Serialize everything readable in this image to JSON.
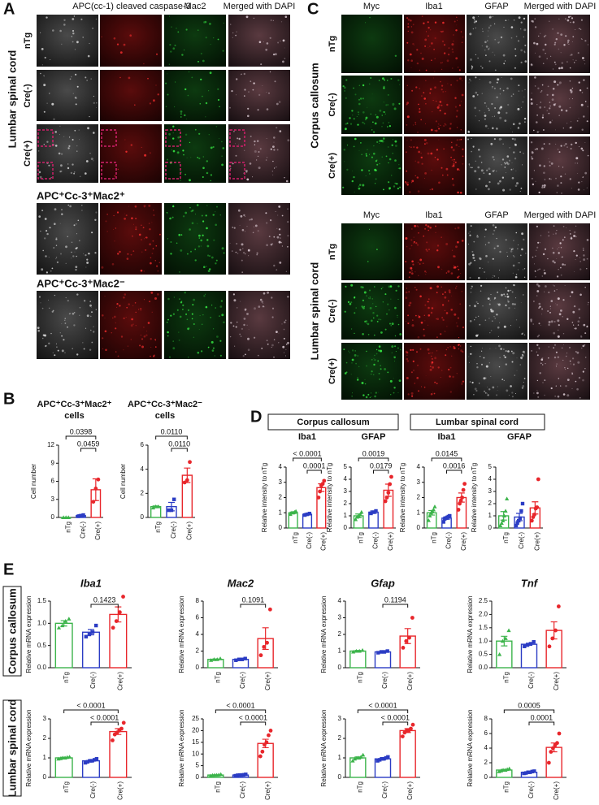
{
  "panel_letters": [
    "A",
    "B",
    "C",
    "D",
    "E"
  ],
  "panel_a": {
    "columns": [
      "APC(cc-1) cleaved caspase-3",
      "Mac2",
      "Merged with DAPI"
    ],
    "side_label": "Lumbar spinal cord",
    "rows": [
      "nTg",
      "Cre(-)",
      "Cre(+)"
    ],
    "insets": [
      "APC⁺Cc-3⁺Mac2⁺",
      "APC⁺Cc-3⁺Mac2⁻"
    ]
  },
  "panel_c": {
    "columns": [
      "Myc",
      "Iba1",
      "GFAP",
      "Merged with DAPI"
    ],
    "blocks": [
      {
        "label": "Corpus callosum",
        "rows": [
          "nTg",
          "Cre(-)",
          "Cre(+)"
        ]
      },
      {
        "label": "Lumbar spinal cord",
        "rows": [
          "nTg",
          "Cre(-)",
          "Cre(+)"
        ]
      }
    ]
  },
  "panel_d": {
    "groups": [
      "Corpus callosum",
      "Lumbar spinal cord"
    ]
  },
  "panel_e": {
    "rows": [
      "Corpus callosum",
      "Lumbar spinal cord"
    ]
  },
  "chart_style": {
    "colors": [
      "#3cb44b",
      "#2b3cc4",
      "#e8262b"
    ],
    "markers": [
      "triangle",
      "square",
      "circle"
    ]
  },
  "chart_data": [
    {
      "type": "bar",
      "title": [
        "APC⁺Cc-3⁺Mac2⁺",
        "cells"
      ],
      "ylabel": "Cell number",
      "categories": [
        "nTg",
        "Cre(-)",
        "Cre(+)"
      ],
      "values": [
        0,
        0.3,
        4.6
      ],
      "errors": [
        0,
        0.15,
        1.8
      ],
      "points": [
        [
          0,
          0,
          0
        ],
        [
          0.2,
          0.3,
          0.4
        ],
        [
          2.6,
          4.8,
          6.3
        ]
      ],
      "ylim": [
        0,
        12
      ],
      "yticks": [
        0,
        3,
        6,
        9,
        12
      ],
      "brackets": [
        {
          "pair": [
            "nTg",
            "Cre(+)"
          ],
          "label": "0.0398"
        },
        {
          "pair": [
            "Cre(-)",
            "Cre(+)"
          ],
          "label": "0.0459"
        }
      ]
    },
    {
      "type": "bar",
      "title": [
        "APC⁺Cc-3⁺Mac2⁻",
        "cells"
      ],
      "ylabel": "Cell number",
      "categories": [
        "nTg",
        "Cre(-)",
        "Cre(+)"
      ],
      "values": [
        0.9,
        0.9,
        3.5
      ],
      "errors": [
        0.05,
        0.35,
        0.6
      ],
      "points": [
        [
          0.8,
          0.9,
          0.9
        ],
        [
          0.6,
          0.6,
          1.5
        ],
        [
          2.9,
          3.1,
          4.6
        ]
      ],
      "ylim": [
        0,
        6
      ],
      "yticks": [
        0,
        2,
        4,
        6
      ],
      "brackets": [
        {
          "pair": [
            "nTg",
            "Cre(+)"
          ],
          "label": "0.0110"
        },
        {
          "pair": [
            "Cre(-)",
            "Cre(+)"
          ],
          "label": "0.0110"
        }
      ]
    },
    {
      "type": "bar",
      "title": "Iba1",
      "ylabel": "Relative intensity to nTg",
      "categories": [
        "nTg",
        "Cre(-)",
        "Cre(+)"
      ],
      "values": [
        1.0,
        0.9,
        2.65
      ],
      "errors": [
        0.05,
        0.05,
        0.25
      ],
      "points": [
        [
          0.9,
          1.0,
          1.0,
          1.05,
          1.1
        ],
        [
          0.85,
          0.9,
          0.95
        ],
        [
          2.0,
          2.4,
          2.8,
          2.9,
          3.1
        ]
      ],
      "ylim": [
        0,
        4
      ],
      "yticks": [
        0,
        1,
        2,
        3,
        4
      ],
      "brackets": [
        {
          "pair": [
            "nTg",
            "Cre(+)"
          ],
          "label": "< 0.0001"
        },
        {
          "pair": [
            "Cre(-)",
            "Cre(+)"
          ],
          "label": "0.0001"
        }
      ]
    },
    {
      "type": "bar",
      "title": "GFAP",
      "ylabel": "Relative intensity to nTg",
      "categories": [
        "nTg",
        "Cre(-)",
        "Cre(+)"
      ],
      "values": [
        1.0,
        1.3,
        3.1
      ],
      "errors": [
        0.15,
        0.1,
        0.5
      ],
      "points": [
        [
          0.7,
          0.9,
          1.0,
          1.1,
          1.3
        ],
        [
          1.2,
          1.3,
          1.4
        ],
        [
          2.2,
          2.5,
          2.9,
          3.6,
          4.2
        ]
      ],
      "ylim": [
        0,
        5
      ],
      "yticks": [
        0,
        1,
        2,
        3,
        4,
        5
      ],
      "brackets": [
        {
          "pair": [
            "nTg",
            "Cre(+)"
          ],
          "label": "0.0019"
        },
        {
          "pair": [
            "Cre(-)",
            "Cre(+)"
          ],
          "label": "0.0179"
        }
      ]
    },
    {
      "type": "bar",
      "title": "Iba1",
      "ylabel": "Relative intensity to nTg",
      "categories": [
        "nTg",
        "Cre(-)",
        "Cre(+)"
      ],
      "values": [
        1.0,
        0.65,
        2.0
      ],
      "errors": [
        0.15,
        0.08,
        0.3
      ],
      "points": [
        [
          0.5,
          0.8,
          1.0,
          1.1,
          1.2,
          1.4
        ],
        [
          0.4,
          0.6,
          0.65,
          0.7,
          0.75,
          0.8
        ],
        [
          1.2,
          1.6,
          1.8,
          2.0,
          2.5,
          2.9
        ]
      ],
      "ylim": [
        0,
        4
      ],
      "yticks": [
        0,
        1,
        2,
        3,
        4
      ],
      "brackets": [
        {
          "pair": [
            "nTg",
            "Cre(+)"
          ],
          "label": "0.0145"
        },
        {
          "pair": [
            "Cre(-)",
            "Cre(+)"
          ],
          "label": "0.0016"
        }
      ]
    },
    {
      "type": "bar",
      "title": "GFAP",
      "ylabel": "Relative intensity to nTg",
      "categories": [
        "nTg",
        "Cre(-)",
        "Cre(+)"
      ],
      "values": [
        1.0,
        0.9,
        1.65
      ],
      "errors": [
        0.35,
        0.3,
        0.5
      ],
      "points": [
        [
          0.2,
          0.4,
          0.6,
          1.0,
          1.4,
          2.4
        ],
        [
          0.2,
          0.4,
          0.6,
          0.8,
          1.4,
          2.0
        ],
        [
          0.6,
          0.9,
          1.1,
          1.6,
          1.7,
          4.0
        ]
      ],
      "ylim": [
        0,
        5
      ],
      "yticks": [
        0,
        1,
        2,
        3,
        4,
        5
      ],
      "brackets": []
    },
    {
      "type": "bar",
      "title": "Iba1",
      "ylabel": "Relative mRNA expression",
      "categories": [
        "nTg",
        "Cre(-)",
        "Cre(+)"
      ],
      "values": [
        1.0,
        0.8,
        1.2
      ],
      "errors": [
        0.06,
        0.06,
        0.17
      ],
      "points": [
        [
          0.9,
          0.95,
          1.05,
          1.1
        ],
        [
          0.7,
          0.75,
          0.8,
          0.95
        ],
        [
          0.9,
          1.05,
          1.25,
          1.6
        ]
      ],
      "ylim": [
        0,
        1.5
      ],
      "yticks": [
        {
          "value": 0,
          "label": "0.0"
        },
        {
          "value": 0.5,
          "label": "0.5"
        },
        {
          "value": 1,
          "label": "1.0"
        },
        {
          "value": 1.5,
          "label": "1.5"
        }
      ],
      "brackets": [
        {
          "pair": [
            "Cre(-)",
            "Cre(+)"
          ],
          "label": "0.1423"
        }
      ]
    },
    {
      "type": "bar",
      "title": "Mac2",
      "ylabel": "Relative mRNA expression",
      "categories": [
        "nTg",
        "Cre(-)",
        "Cre(+)"
      ],
      "values": [
        1.0,
        1.0,
        3.5
      ],
      "errors": [
        0.05,
        0.05,
        1.3
      ],
      "points": [
        [
          0.9,
          1.0,
          1.0,
          1.1
        ],
        [
          0.9,
          1.0,
          1.0,
          1.1
        ],
        [
          1.5,
          2.5,
          3.0,
          7.0
        ]
      ],
      "ylim": [
        0,
        8
      ],
      "yticks": [
        0,
        2,
        4,
        6,
        8
      ],
      "brackets": [
        {
          "pair": [
            "Cre(-)",
            "Cre(+)"
          ],
          "label": "0.1091"
        }
      ]
    },
    {
      "type": "bar",
      "title": "Gfap",
      "ylabel": "Relative mRNA expression",
      "categories": [
        "nTg",
        "Cre(-)",
        "Cre(+)"
      ],
      "values": [
        1.0,
        0.95,
        1.9
      ],
      "errors": [
        0.04,
        0.03,
        0.45
      ],
      "points": [
        [
          0.95,
          1.0,
          1.0,
          1.05
        ],
        [
          0.9,
          0.95,
          0.95,
          1.0
        ],
        [
          1.2,
          1.6,
          1.8,
          3.0
        ]
      ],
      "ylim": [
        0,
        4
      ],
      "yticks": [
        0,
        1,
        2,
        3,
        4
      ],
      "brackets": [
        {
          "pair": [
            "Cre(-)",
            "Cre(+)"
          ],
          "label": "0.1194"
        }
      ]
    },
    {
      "type": "bar",
      "title": "Tnf",
      "ylabel": "Relative mRNA expression",
      "categories": [
        "nTg",
        "Cre(-)",
        "Cre(+)"
      ],
      "values": [
        1.0,
        0.88,
        1.4
      ],
      "errors": [
        0.18,
        0.04,
        0.32
      ],
      "points": [
        [
          0.5,
          1.0,
          1.1,
          1.4
        ],
        [
          0.8,
          0.85,
          0.9,
          0.97
        ],
        [
          0.8,
          1.1,
          1.4,
          2.3
        ]
      ],
      "ylim": [
        0,
        2.5
      ],
      "yticks": [
        {
          "value": 0,
          "label": "0.0"
        },
        {
          "value": 0.5,
          "label": "0.5"
        },
        {
          "value": 1,
          "label": "1.0"
        },
        {
          "value": 1.5,
          "label": "1.5"
        },
        {
          "value": 2,
          "label": "2.0"
        },
        {
          "value": 2.5,
          "label": "2.5"
        }
      ],
      "brackets": []
    },
    {
      "type": "bar",
      "ylabel": "Relative mRNA expression",
      "categories": [
        "nTg",
        "Cre(-)",
        "Cre(+)"
      ],
      "values": [
        1.0,
        0.85,
        2.35
      ],
      "errors": [
        0.03,
        0.04,
        0.15
      ],
      "points": [
        [
          0.95,
          0.97,
          1.0,
          1.0,
          1.03,
          1.05
        ],
        [
          0.75,
          0.8,
          0.85,
          0.85,
          0.9,
          0.95
        ],
        [
          1.9,
          2.2,
          2.3,
          2.4,
          2.5,
          2.8
        ]
      ],
      "ylim": [
        0,
        3
      ],
      "yticks": [
        0,
        1,
        2,
        3
      ],
      "brackets": [
        {
          "pair": [
            "nTg",
            "Cre(+)"
          ],
          "label": "< 0.0001"
        },
        {
          "pair": [
            "Cre(-)",
            "Cre(+)"
          ],
          "label": "< 0.0001"
        }
      ]
    },
    {
      "type": "bar",
      "ylabel": "Relative mRNA expression",
      "categories": [
        "nTg",
        "Cre(-)",
        "Cre(+)"
      ],
      "values": [
        1.0,
        1.0,
        14.5
      ],
      "errors": [
        0.1,
        0.1,
        1.8
      ],
      "points": [
        [
          0.7,
          0.9,
          1.0,
          1.0,
          1.1,
          1.3
        ],
        [
          0.7,
          0.9,
          1.0,
          1.0,
          1.1,
          1.3
        ],
        [
          9,
          11,
          14,
          15,
          18,
          20
        ]
      ],
      "ylim": [
        0,
        25
      ],
      "yticks": [
        0,
        5,
        10,
        15,
        20,
        25
      ],
      "brackets": [
        {
          "pair": [
            "nTg",
            "Cre(+)"
          ],
          "label": "< 0.0001"
        },
        {
          "pair": [
            "Cre(-)",
            "Cre(+)"
          ],
          "label": "< 0.0001"
        }
      ]
    },
    {
      "type": "bar",
      "ylabel": "Relative mRNA expression",
      "categories": [
        "nTg",
        "Cre(-)",
        "Cre(+)"
      ],
      "values": [
        1.0,
        0.95,
        2.4
      ],
      "errors": [
        0.05,
        0.04,
        0.1
      ],
      "points": [
        [
          0.85,
          0.95,
          1.0,
          1.0,
          1.05,
          1.15
        ],
        [
          0.85,
          0.9,
          0.95,
          0.95,
          1.0,
          1.05
        ],
        [
          2.1,
          2.3,
          2.4,
          2.4,
          2.5,
          2.7
        ]
      ],
      "ylim": [
        0,
        3
      ],
      "yticks": [
        0,
        1,
        2,
        3
      ],
      "brackets": [
        {
          "pair": [
            "nTg",
            "Cre(+)"
          ],
          "label": "< 0.0001"
        },
        {
          "pair": [
            "Cre(-)",
            "Cre(+)"
          ],
          "label": "< 0.0001"
        }
      ]
    },
    {
      "type": "bar",
      "ylabel": "Relative mRNA expression",
      "categories": [
        "nTg",
        "Cre(-)",
        "Cre(+)"
      ],
      "values": [
        1.0,
        0.7,
        4.1
      ],
      "errors": [
        0.08,
        0.05,
        0.6
      ],
      "points": [
        [
          0.8,
          0.9,
          1.0,
          1.0,
          1.1,
          1.2
        ],
        [
          0.55,
          0.6,
          0.7,
          0.7,
          0.8,
          0.85
        ],
        [
          2.0,
          3.5,
          4.0,
          4.4,
          4.7,
          6.0
        ]
      ],
      "ylim": [
        0,
        8
      ],
      "yticks": [
        0,
        2,
        4,
        6,
        8
      ],
      "brackets": [
        {
          "pair": [
            "nTg",
            "Cre(+)"
          ],
          "label": "0.0005"
        },
        {
          "pair": [
            "Cre(-)",
            "Cre(+)"
          ],
          "label": "0.0001"
        }
      ]
    }
  ]
}
